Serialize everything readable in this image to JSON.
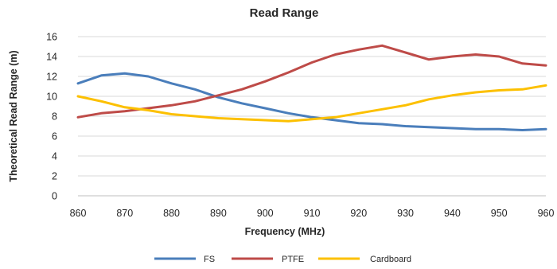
{
  "chart_data": {
    "type": "line",
    "title": "Read Range",
    "xlabel": "Frequency (MHz)",
    "ylabel": "Theoretical Read Range (m)",
    "x": [
      860,
      865,
      870,
      875,
      880,
      885,
      890,
      895,
      900,
      905,
      910,
      915,
      920,
      925,
      930,
      935,
      940,
      945,
      950,
      955,
      960
    ],
    "xticks": [
      860,
      870,
      880,
      890,
      900,
      910,
      920,
      930,
      940,
      950,
      960
    ],
    "yticks": [
      0,
      2,
      4,
      6,
      8,
      10,
      12,
      14,
      16
    ],
    "xlim": [
      860,
      960
    ],
    "ylim": [
      0,
      16
    ],
    "grid": true,
    "legend": "bottom",
    "series": [
      {
        "name": "FS",
        "color": "#4a7ebb",
        "values": [
          11.3,
          12.1,
          12.3,
          12.0,
          11.3,
          10.7,
          9.9,
          9.3,
          8.8,
          8.3,
          7.9,
          7.6,
          7.3,
          7.2,
          7.0,
          6.9,
          6.8,
          6.7,
          6.7,
          6.6,
          6.7
        ]
      },
      {
        "name": "PTFE",
        "color": "#be4b48",
        "values": [
          7.9,
          8.3,
          8.5,
          8.8,
          9.1,
          9.5,
          10.1,
          10.7,
          11.5,
          12.4,
          13.4,
          14.2,
          14.7,
          15.1,
          14.4,
          13.7,
          14.0,
          14.2,
          14.0,
          13.3,
          13.1
        ]
      },
      {
        "name": "Cardboard",
        "color": "#fcc000",
        "values": [
          10.0,
          9.5,
          8.9,
          8.6,
          8.2,
          8.0,
          7.8,
          7.7,
          7.6,
          7.5,
          7.7,
          7.9,
          8.3,
          8.7,
          9.1,
          9.7,
          10.1,
          10.4,
          10.6,
          10.7,
          11.1
        ]
      }
    ]
  }
}
